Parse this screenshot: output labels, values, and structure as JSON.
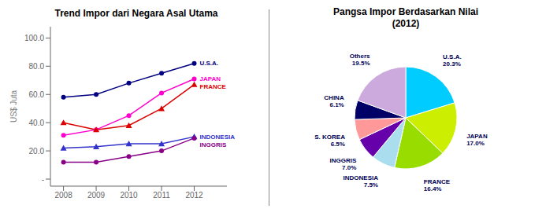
{
  "chart_data": [
    {
      "type": "line",
      "title": "Trend Impor dari Negara Asal Utama",
      "ylabel": "US$ Juta",
      "x": [
        2008,
        2009,
        2010,
        2011,
        2012
      ],
      "xlim": [
        2007.6,
        2013.0
      ],
      "xticks": [
        2008,
        2009,
        2010,
        2011,
        2012
      ],
      "ylim": [
        -5,
        108
      ],
      "yticks": [
        {
          "value": 0,
          "label": "-"
        },
        {
          "value": 20.0,
          "label": "20.0"
        },
        {
          "value": 40.0,
          "label": "40.0"
        },
        {
          "value": 60.0,
          "label": "60.0"
        },
        {
          "value": 80.0,
          "label": "80.0"
        },
        {
          "value": 100.0,
          "label": "100.0"
        }
      ],
      "grid": false,
      "series": [
        {
          "name": "U.S.A.",
          "color": "#000080",
          "marker": "circle",
          "values": [
            58.0,
            60.0,
            68.0,
            75.0,
            82.0
          ]
        },
        {
          "name": "JAPAN",
          "color": "#FF00CC",
          "marker": "circle",
          "values": [
            31.0,
            35.0,
            45.0,
            61.0,
            71.0
          ]
        },
        {
          "name": "FRANCE",
          "color": "#DD0000",
          "marker": "triangle",
          "values": [
            40.0,
            35.0,
            38.0,
            50.0,
            67.0
          ]
        },
        {
          "name": "INDONESIA",
          "color": "#3333CC",
          "marker": "triangle",
          "values": [
            22.0,
            23.0,
            25.0,
            25.0,
            30.0
          ]
        },
        {
          "name": "INGGRIS",
          "color": "#880088",
          "marker": "circle",
          "values": [
            12.0,
            12.0,
            16.0,
            20.0,
            29.0
          ]
        }
      ]
    },
    {
      "type": "pie",
      "title": "Pangsa Impor Berdasarkan Nilai\n(2012)",
      "categories": [
        "U.S.A.",
        "JAPAN",
        "FRANCE",
        "INDONESIA",
        "INGGRIS",
        "S. KOREA",
        "CHINA",
        "Others"
      ],
      "values": [
        20.3,
        17.0,
        16.4,
        7.5,
        7.0,
        6.5,
        6.1,
        19.5
      ],
      "value_labels": [
        "20.3%",
        "17.0%",
        "16.4%",
        "7.5%",
        "7.0%",
        "6.5%",
        "6.1%",
        "19.5%"
      ],
      "colors": [
        "#00CCFF",
        "#CCEE00",
        "#99DD00",
        "#AADDEE",
        "#6600AA",
        "#FF9999",
        "#000066",
        "#CCAADD"
      ],
      "data_labels": true
    }
  ]
}
